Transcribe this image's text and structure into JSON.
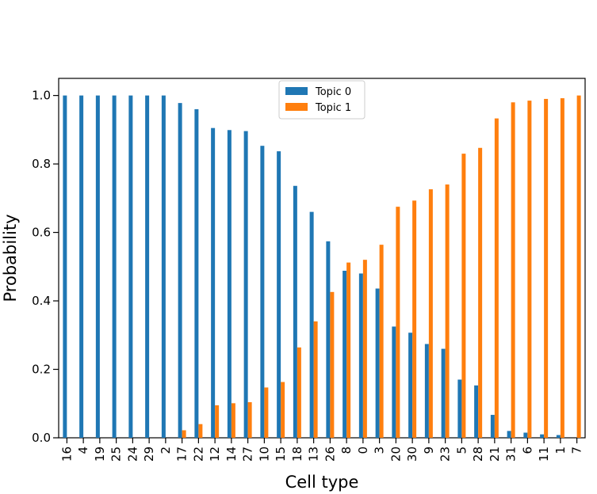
{
  "chart_data": {
    "type": "bar",
    "xlabel": "Cell type",
    "ylabel": "Probability",
    "ylim": [
      0,
      1.05
    ],
    "yticks": [
      "0.0",
      "0.2",
      "0.4",
      "0.6",
      "0.8",
      "1.0"
    ],
    "categories": [
      "16",
      "4",
      "19",
      "25",
      "24",
      "29",
      "2",
      "17",
      "22",
      "12",
      "14",
      "27",
      "10",
      "15",
      "18",
      "13",
      "26",
      "8",
      "0",
      "3",
      "20",
      "30",
      "9",
      "23",
      "5",
      "28",
      "21",
      "31",
      "6",
      "11",
      "1",
      "7"
    ],
    "series": [
      {
        "name": "Topic 0",
        "color": "#1f77b4",
        "values": [
          1.0,
          1.0,
          1.0,
          1.0,
          1.0,
          1.0,
          1.0,
          0.978,
          0.96,
          0.905,
          0.899,
          0.896,
          0.853,
          0.837,
          0.736,
          0.66,
          0.574,
          0.488,
          0.48,
          0.436,
          0.325,
          0.307,
          0.274,
          0.26,
          0.17,
          0.153,
          0.067,
          0.02,
          0.015,
          0.01,
          0.008,
          0.0
        ]
      },
      {
        "name": "Topic 1",
        "color": "#ff7f0e",
        "values": [
          0.0,
          0.0,
          0.0,
          0.0,
          0.0,
          0.0,
          0.0,
          0.022,
          0.04,
          0.095,
          0.101,
          0.104,
          0.147,
          0.163,
          0.264,
          0.34,
          0.426,
          0.512,
          0.52,
          0.564,
          0.675,
          0.693,
          0.726,
          0.74,
          0.83,
          0.847,
          0.933,
          0.98,
          0.985,
          0.99,
          0.992,
          1.0
        ]
      }
    ],
    "legend_position": "top-center"
  }
}
